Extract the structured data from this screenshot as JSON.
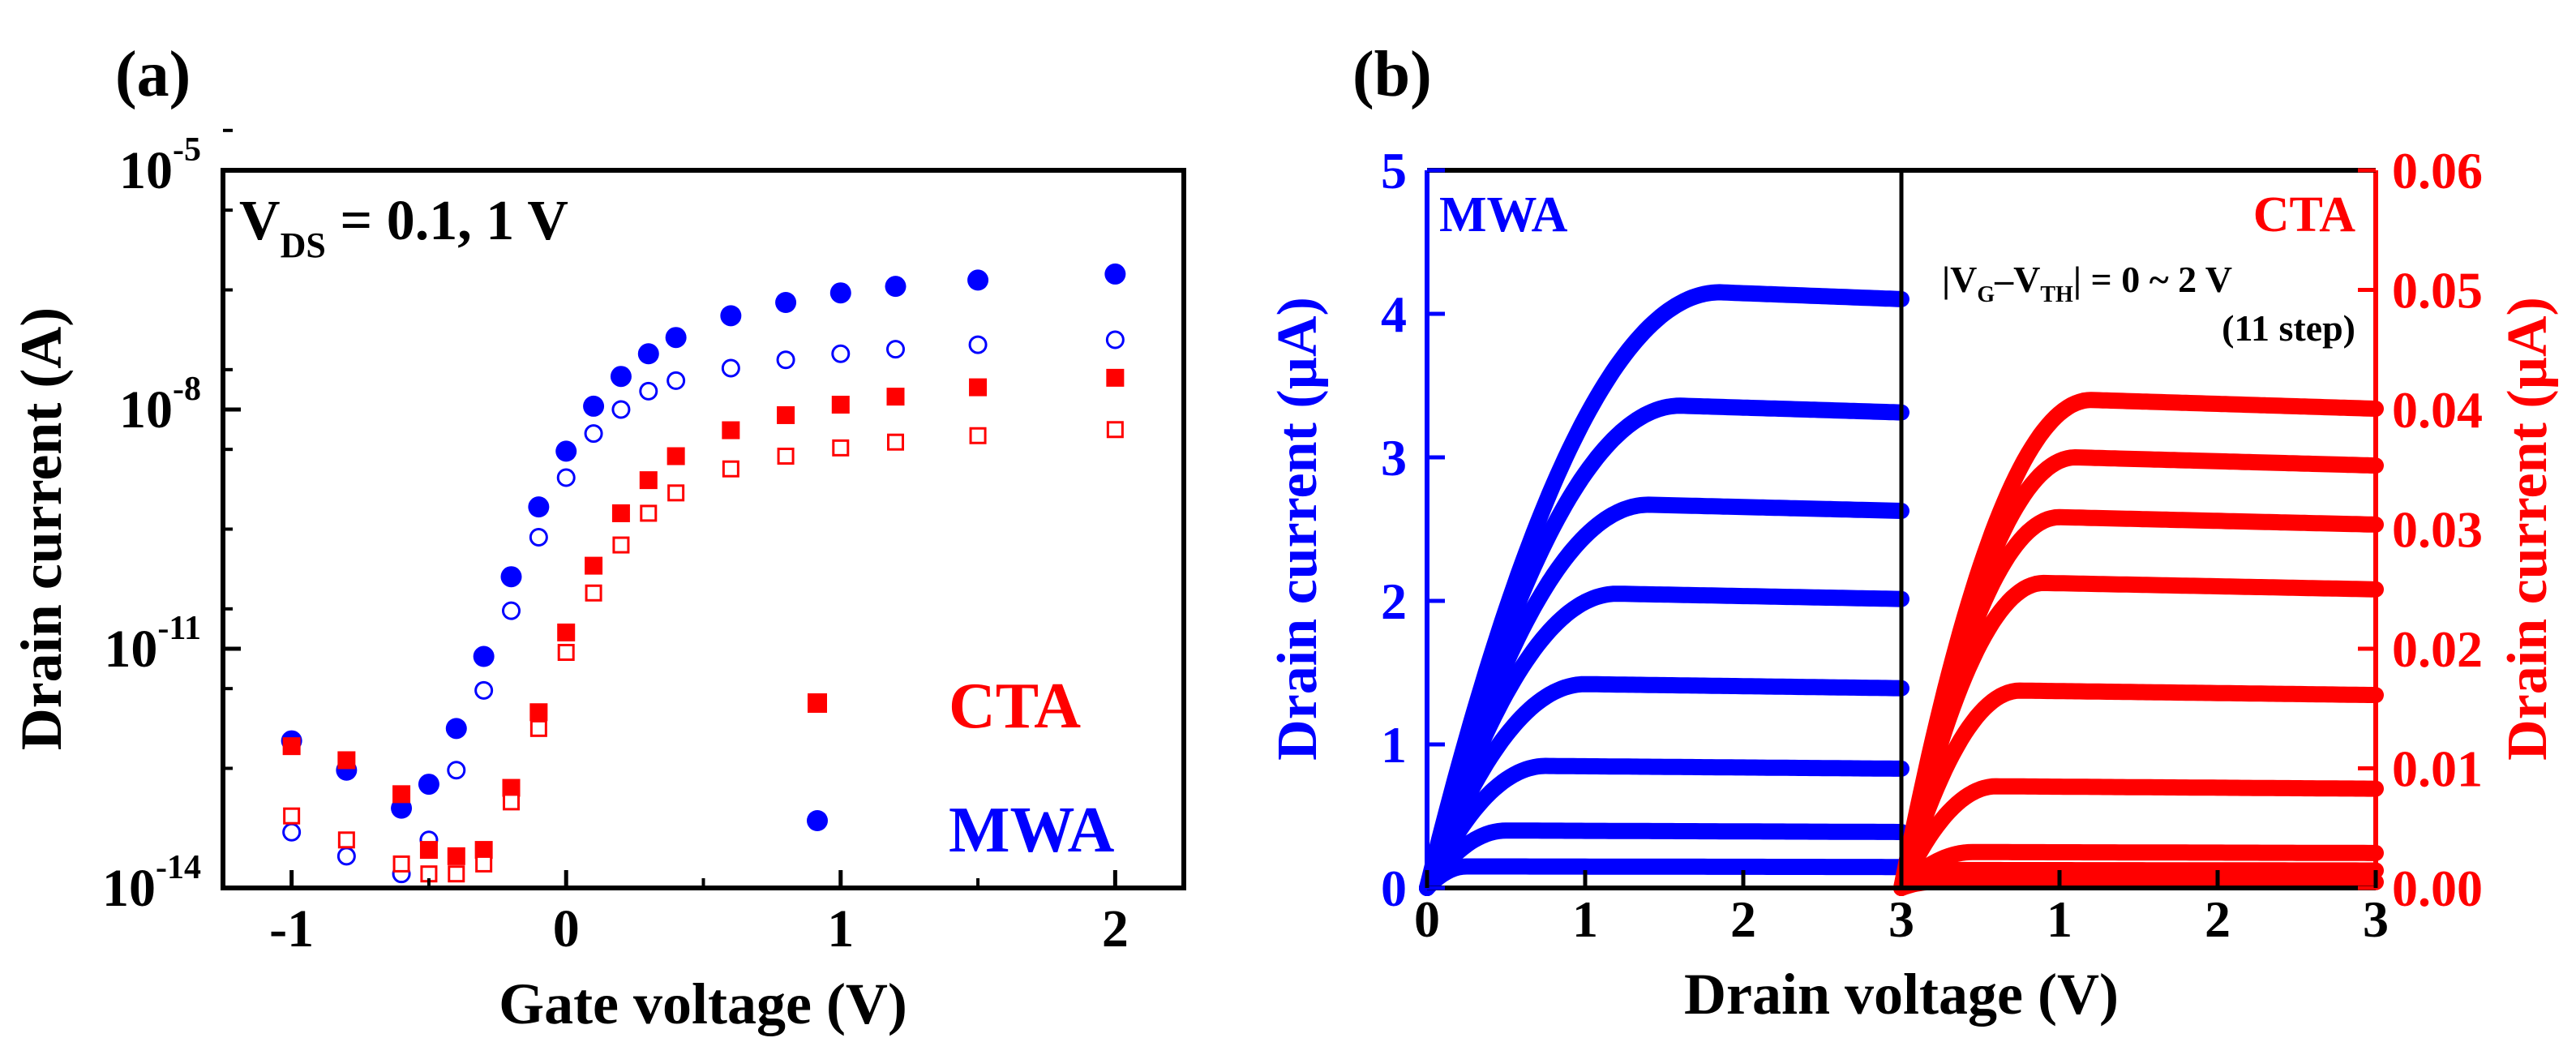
{
  "panels": [
    {
      "label": "(a)",
      "title": "",
      "xlabel": "Gate voltage (V)",
      "ylabel": "Drain current (A)",
      "annotation": {
        "main": "V",
        "sub": "DS",
        "rest": " = 0.1, 1 V"
      },
      "legend": [
        {
          "name": "CTA",
          "marker": "square",
          "color": "#ff0000"
        },
        {
          "name": "MWA",
          "marker": "circle",
          "color": "#0000ff"
        }
      ]
    },
    {
      "label": "(b)",
      "xlabel": "Drain voltage (V)",
      "ylabel_left": "Drain current (µA)",
      "ylabel_right": "Drain current (µA)",
      "left_tag": "MWA",
      "right_tag": "CTA",
      "sweep_note": {
        "expr_a": "|V",
        "sub_g": "G",
        "dash": "–V",
        "sub_th": "TH",
        "expr_b": "|",
        "range": " = 0 ~ 2 V",
        "steps": "(11 step)"
      }
    }
  ],
  "chart_data": [
    {
      "type": "scatter",
      "yscale": "log",
      "xlim": [
        -1.25,
        2.25
      ],
      "ylim": [
        1e-14,
        1e-05
      ],
      "xticks": [
        -1,
        0,
        1,
        2
      ],
      "xtick_labels": [
        "-1",
        "0",
        "1",
        "2"
      ],
      "yticks": [
        {
          "value": 1e-14,
          "base": "10",
          "exp": "-14"
        },
        {
          "value": 1e-11,
          "base": "10",
          "exp": "-11"
        },
        {
          "value": 1e-08,
          "base": "10",
          "exp": "-8"
        },
        {
          "value": 1e-05,
          "base": "10",
          "exp": "-5"
        }
      ],
      "series": [
        {
          "name": "MWA",
          "vds": 1.0,
          "color": "#0000ff",
          "marker": "circle",
          "filled": true,
          "x": [
            -1.0,
            -0.8,
            -0.6,
            -0.5,
            -0.4,
            -0.3,
            -0.2,
            -0.1,
            0.0,
            0.1,
            0.2,
            0.3,
            0.4,
            0.6,
            0.8,
            1.0,
            1.2,
            1.5,
            2.0
          ],
          "y": [
            7e-13,
            3e-13,
            1e-13,
            2e-13,
            1e-12,
            8e-12,
            8e-11,
            6e-10,
            3e-09,
            1.1e-08,
            2.6e-08,
            5e-08,
            8e-08,
            1.5e-07,
            2.2e-07,
            2.9e-07,
            3.5e-07,
            4.2e-07,
            5e-07
          ]
        },
        {
          "name": "MWA",
          "vds": 0.1,
          "color": "#0000ff",
          "marker": "circle",
          "filled": false,
          "x": [
            -1.0,
            -0.8,
            -0.6,
            -0.5,
            -0.4,
            -0.3,
            -0.2,
            -0.1,
            0.0,
            0.1,
            0.2,
            0.3,
            0.4,
            0.6,
            0.8,
            1.0,
            1.2,
            1.5,
            2.0
          ],
          "y": [
            5e-14,
            2.5e-14,
            1.5e-14,
            4e-14,
            3e-13,
            3e-12,
            3e-11,
            2.5e-10,
            1.4e-09,
            5e-09,
            1e-08,
            1.7e-08,
            2.3e-08,
            3.3e-08,
            4.2e-08,
            5e-08,
            5.7e-08,
            6.5e-08,
            7.5e-08
          ]
        },
        {
          "name": "CTA",
          "vds": 1.0,
          "color": "#ff0000",
          "marker": "square",
          "filled": true,
          "x": [
            -1.0,
            -0.8,
            -0.6,
            -0.5,
            -0.4,
            -0.3,
            -0.2,
            -0.1,
            0.0,
            0.1,
            0.2,
            0.3,
            0.4,
            0.6,
            0.8,
            1.0,
            1.2,
            1.5,
            2.0
          ],
          "y": [
            6e-13,
            4e-13,
            1.5e-13,
            3e-14,
            2.5e-14,
            3e-14,
            1.8e-13,
            1.6e-12,
            1.6e-11,
            1.1e-10,
            5e-10,
            1.3e-09,
            2.6e-09,
            5.5e-09,
            8.5e-09,
            1.15e-08,
            1.45e-08,
            1.9e-08,
            2.5e-08
          ]
        },
        {
          "name": "CTA",
          "vds": 0.1,
          "color": "#ff0000",
          "marker": "square",
          "filled": false,
          "x": [
            -1.0,
            -0.8,
            -0.6,
            -0.5,
            -0.4,
            -0.3,
            -0.2,
            -0.1,
            0.0,
            0.1,
            0.2,
            0.3,
            0.4,
            0.6,
            0.8,
            1.0,
            1.2,
            1.5,
            2.0
          ],
          "y": [
            8e-14,
            4e-14,
            2e-14,
            1.5e-14,
            1.5e-14,
            2e-14,
            1.2e-13,
            1e-12,
            9e-12,
            5e-11,
            2e-10,
            5e-10,
            9e-10,
            1.8e-09,
            2.6e-09,
            3.3e-09,
            3.9e-09,
            4.7e-09,
            5.6e-09
          ]
        }
      ]
    },
    {
      "type": "line",
      "xlim": [
        0,
        3
      ],
      "xticks": [
        0,
        1,
        2,
        3
      ],
      "xtick_labels": [
        "0",
        "1",
        "2",
        "3"
      ],
      "ylim_left": [
        0,
        5
      ],
      "yticks_left": [
        "0",
        "1",
        "2",
        "3",
        "4",
        "5"
      ],
      "ylim_right": [
        0,
        0.06
      ],
      "yticks_right": [
        "0.00",
        "0.01",
        "0.02",
        "0.03",
        "0.04",
        "0.05",
        "0.06"
      ],
      "series": [
        {
          "name": "MWA",
          "axis": "left",
          "color": "#0000ff",
          "x_offset": 0,
          "curves": [
            {
              "isat": 0.15,
              "vsat": 0.25
            },
            {
              "isat": 0.4,
              "vsat": 0.5
            },
            {
              "isat": 0.85,
              "vsat": 0.75
            },
            {
              "isat": 1.42,
              "vsat": 1.0
            },
            {
              "isat": 2.05,
              "vsat": 1.2
            },
            {
              "isat": 2.67,
              "vsat": 1.4
            },
            {
              "isat": 3.36,
              "vsat": 1.6
            },
            {
              "isat": 4.15,
              "vsat": 1.85
            }
          ]
        },
        {
          "name": "CTA",
          "axis": "right",
          "color": "#ff0000",
          "x_offset": 3,
          "curves": [
            {
              "isat": 0.0005,
              "vsat": 0.2
            },
            {
              "isat": 0.0015,
              "vsat": 0.3
            },
            {
              "isat": 0.003,
              "vsat": 0.45
            },
            {
              "isat": 0.0085,
              "vsat": 0.6
            },
            {
              "isat": 0.0165,
              "vsat": 0.75
            },
            {
              "isat": 0.0255,
              "vsat": 0.9
            },
            {
              "isat": 0.031,
              "vsat": 1.0
            },
            {
              "isat": 0.036,
              "vsat": 1.1
            },
            {
              "isat": 0.0408,
              "vsat": 1.2
            }
          ]
        }
      ]
    }
  ]
}
